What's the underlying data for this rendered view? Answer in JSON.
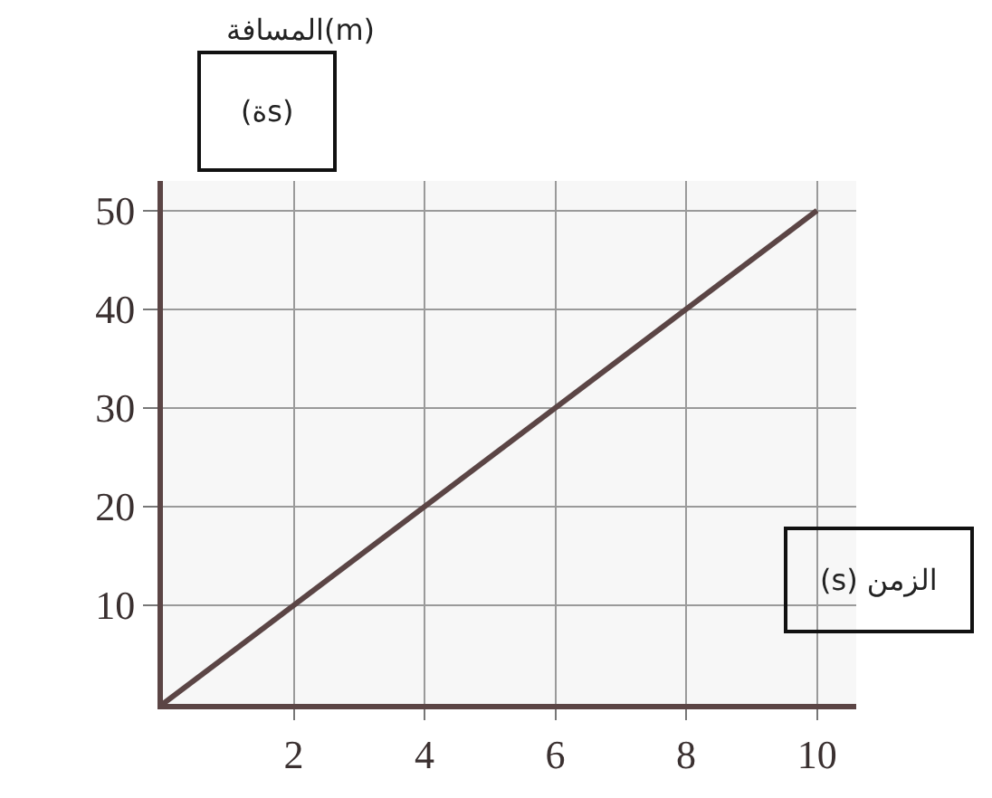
{
  "chart_data": {
    "type": "line",
    "xlabel": "(s) الزمن",
    "ylabel": "المسافة(m)",
    "annotations": [
      "(ةs)"
    ],
    "x": [
      0,
      10
    ],
    "series": [
      {
        "color": "#5b4545",
        "values": [
          0,
          50
        ]
      }
    ],
    "xlim": [
      0,
      10.6
    ],
    "ylim": [
      0,
      53
    ],
    "xticks": [
      2,
      4,
      6,
      8,
      10
    ],
    "yticks": [
      10,
      20,
      30,
      40,
      50
    ],
    "grid": true,
    "marker": "none",
    "line_style": "solid"
  }
}
